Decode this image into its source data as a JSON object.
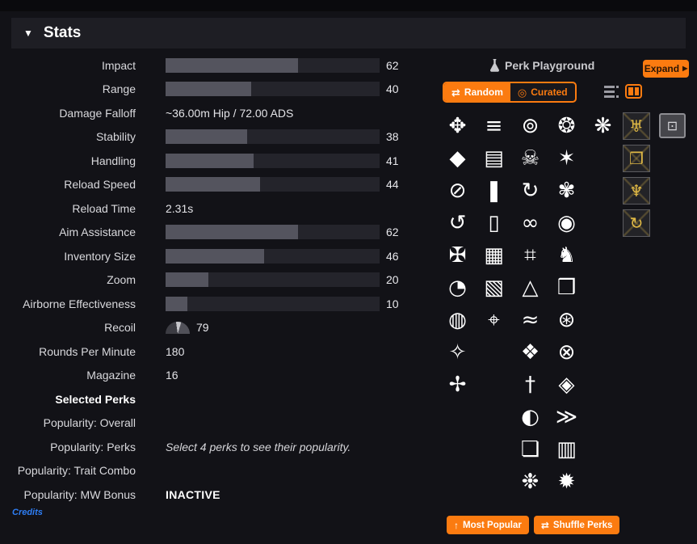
{
  "stats_section": {
    "title": "Stats",
    "collapse_icon": "▼",
    "rows": [
      {
        "label": "Impact",
        "kind": "bar",
        "value": 62
      },
      {
        "label": "Range",
        "kind": "bar",
        "value": 40
      },
      {
        "label": "Damage Falloff",
        "kind": "text",
        "value": "~36.00m Hip / 72.00 ADS"
      },
      {
        "label": "Stability",
        "kind": "bar",
        "value": 38
      },
      {
        "label": "Handling",
        "kind": "bar",
        "value": 41
      },
      {
        "label": "Reload Speed",
        "kind": "bar",
        "value": 44
      },
      {
        "label": "Reload Time",
        "kind": "text",
        "value": "2.31s"
      },
      {
        "label": "Aim Assistance",
        "kind": "bar",
        "value": 62
      },
      {
        "label": "Inventory Size",
        "kind": "bar",
        "value": 46
      },
      {
        "label": "Zoom",
        "kind": "bar",
        "value": 20
      },
      {
        "label": "Airborne Effectiveness",
        "kind": "bar",
        "value": 10
      },
      {
        "label": "Recoil",
        "kind": "gauge",
        "value": 79
      },
      {
        "label": "Rounds Per Minute",
        "kind": "text",
        "value": "180"
      },
      {
        "label": "Magazine",
        "kind": "text",
        "value": "16"
      },
      {
        "label": "Selected Perks",
        "kind": "section"
      },
      {
        "label": "Popularity: Overall",
        "kind": "empty"
      },
      {
        "label": "Popularity: Perks",
        "kind": "hint",
        "value": "Select 4 perks to see their popularity."
      },
      {
        "label": "Popularity: Trait Combo",
        "kind": "empty"
      },
      {
        "label": "Popularity: MW Bonus",
        "kind": "status",
        "value": "INACTIVE"
      }
    ],
    "credits_label": "Credits"
  },
  "perk_playground": {
    "title": "Perk Playground",
    "flask_icon": "flask-icon",
    "expand_button": {
      "label": "Expand",
      "arrow_icon": "▶"
    },
    "mode_toggle": {
      "random": {
        "label": "Random",
        "icon": "⇄",
        "active": true
      },
      "curated": {
        "label": "Curated",
        "icon": "◎",
        "active": false
      }
    },
    "view_toggle": {
      "list_view_icon": "list-lines",
      "column_view_icon": "two-columns",
      "active_view": "columns"
    },
    "perk_grid_glyph_rows": [
      [
        "✥",
        "≡",
        "⊚",
        "❂",
        "❋"
      ],
      [
        "◆",
        "▤",
        "☠",
        "✶",
        null
      ],
      [
        "⊘",
        "❚",
        "↻",
        "✾",
        null
      ],
      [
        "↺",
        "▯",
        "∞",
        "◉",
        null
      ],
      [
        "✠",
        "▦",
        "⌗",
        "♞",
        null
      ],
      [
        "◔",
        "▧",
        "△",
        "❒",
        null
      ],
      [
        "◍",
        "⌖",
        "≈",
        "⊛",
        null
      ],
      [
        "✧",
        null,
        "❖",
        "⊗",
        null
      ],
      [
        "✢",
        null,
        "†",
        "◈",
        null
      ],
      [
        null,
        null,
        "◐",
        "≫",
        null
      ],
      [
        null,
        null,
        "❏",
        "▥",
        null
      ],
      [
        null,
        null,
        "❉",
        "✹",
        null
      ]
    ],
    "enhanced_perk_glyphs": [
      "♅",
      "❐",
      "♆",
      "↻"
    ],
    "catalyst_glyph": "⊡",
    "footer_buttons": [
      {
        "label": "Most Popular",
        "icon": "↑"
      },
      {
        "label": "Shuffle Perks",
        "icon": "⇄"
      }
    ]
  },
  "colors": {
    "accent_orange": "#fb7b10",
    "bar_fill": "#54545e",
    "bar_track": "#24242b",
    "gold": "#e0b945",
    "link_blue": "#2e7ef5",
    "header_bg": "#1e1e24",
    "page_bg": "#121217"
  }
}
